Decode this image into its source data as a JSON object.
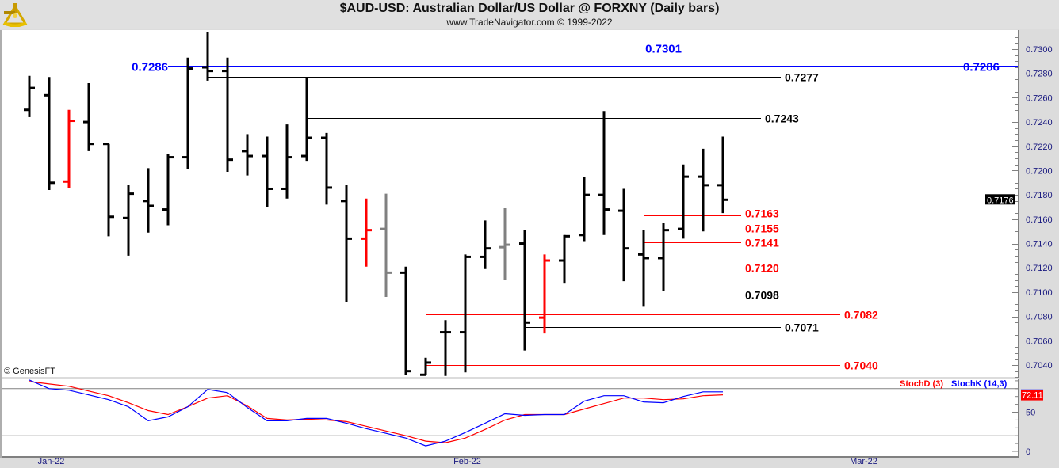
{
  "header": {
    "title": "$AUD-USD:  Australian Dollar/US Dollar @ FORXNY  (Daily bars)",
    "subtitle": "www.TradeNavigator.com © 1999-2022",
    "logo": "sextant-logo"
  },
  "watermark": "© GenesisFT",
  "colors": {
    "up": "#000000",
    "red_bar": "#ff0000",
    "gray_bar": "#808080",
    "blue_level": "#0000ff",
    "red_level": "#ff0000",
    "stoch_k": "#0000ff",
    "stoch_d": "#ff0000"
  },
  "chart_data": [
    {
      "type": "ohlc",
      "title": "$AUD-USD:  Australian Dollar/US Dollar @ FORXNY  (Daily bars)",
      "ylim": [
        0.703,
        0.7315
      ],
      "yticks": [
        "0.7040",
        "0.7060",
        "0.7080",
        "0.7100",
        "0.7120",
        "0.7140",
        "0.7160",
        "0.7180",
        "0.7200",
        "0.7220",
        "0.7240",
        "0.7260",
        "0.7280",
        "0.7300"
      ],
      "xticks": [
        {
          "label": "Jan-22",
          "bar": 1.1
        },
        {
          "label": "Feb-22",
          "bar": 22.1
        },
        {
          "label": "Mar-22",
          "bar": 42.1
        }
      ],
      "last_price": "0.7176",
      "bars": [
        {
          "o": 0.725,
          "h": 0.7278,
          "l": 0.7244,
          "c": 0.7268,
          "color": "black"
        },
        {
          "o": 0.7262,
          "h": 0.7277,
          "l": 0.7184,
          "c": 0.719,
          "color": "black"
        },
        {
          "o": 0.7191,
          "h": 0.725,
          "l": 0.7186,
          "c": 0.7241,
          "color": "red"
        },
        {
          "o": 0.724,
          "h": 0.7272,
          "l": 0.7216,
          "c": 0.7222,
          "color": "black"
        },
        {
          "o": 0.7222,
          "h": 0.7222,
          "l": 0.7146,
          "c": 0.7162,
          "color": "black"
        },
        {
          "o": 0.7161,
          "h": 0.7188,
          "l": 0.713,
          "c": 0.7181,
          "color": "black"
        },
        {
          "o": 0.7175,
          "h": 0.7202,
          "l": 0.7149,
          "c": 0.7171,
          "color": "black"
        },
        {
          "o": 0.7168,
          "h": 0.7214,
          "l": 0.7155,
          "c": 0.7211,
          "color": "black"
        },
        {
          "o": 0.7211,
          "h": 0.7293,
          "l": 0.7201,
          "c": 0.7284,
          "color": "black"
        },
        {
          "o": 0.7285,
          "h": 0.7314,
          "l": 0.7274,
          "c": 0.7282,
          "color": "black"
        },
        {
          "o": 0.7282,
          "h": 0.7293,
          "l": 0.7199,
          "c": 0.7209,
          "color": "black"
        },
        {
          "o": 0.7216,
          "h": 0.723,
          "l": 0.7196,
          "c": 0.7212,
          "color": "black"
        },
        {
          "o": 0.7212,
          "h": 0.7228,
          "l": 0.717,
          "c": 0.7185,
          "color": "black"
        },
        {
          "o": 0.7185,
          "h": 0.7238,
          "l": 0.7177,
          "c": 0.7211,
          "color": "black"
        },
        {
          "o": 0.7212,
          "h": 0.7277,
          "l": 0.7208,
          "c": 0.7227,
          "color": "black"
        },
        {
          "o": 0.7227,
          "h": 0.7231,
          "l": 0.7172,
          "c": 0.7186,
          "color": "black"
        },
        {
          "o": 0.7175,
          "h": 0.7188,
          "l": 0.7092,
          "c": 0.7144,
          "color": "black"
        },
        {
          "o": 0.7144,
          "h": 0.7177,
          "l": 0.7121,
          "c": 0.7151,
          "color": "red"
        },
        {
          "o": 0.7152,
          "h": 0.7181,
          "l": 0.7096,
          "c": 0.7116,
          "color": "gray"
        },
        {
          "o": 0.7116,
          "h": 0.7121,
          "l": 0.7032,
          "c": 0.7035,
          "color": "black"
        },
        {
          "o": 0.7032,
          "h": 0.7046,
          "l": 0.7032,
          "c": 0.7042,
          "color": "black"
        },
        {
          "o": 0.7067,
          "h": 0.7077,
          "l": 0.7031,
          "c": 0.7067,
          "color": "black"
        },
        {
          "o": 0.7067,
          "h": 0.7131,
          "l": 0.7034,
          "c": 0.7129,
          "color": "black"
        },
        {
          "o": 0.7129,
          "h": 0.7159,
          "l": 0.7119,
          "c": 0.7136,
          "color": "black"
        },
        {
          "o": 0.7137,
          "h": 0.7169,
          "l": 0.711,
          "c": 0.7139,
          "color": "gray"
        },
        {
          "o": 0.714,
          "h": 0.7151,
          "l": 0.7052,
          "c": 0.7075,
          "color": "black"
        },
        {
          "o": 0.7079,
          "h": 0.7131,
          "l": 0.7066,
          "c": 0.7126,
          "color": "red"
        },
        {
          "o": 0.7126,
          "h": 0.7147,
          "l": 0.7107,
          "c": 0.7146,
          "color": "black"
        },
        {
          "o": 0.7147,
          "h": 0.7195,
          "l": 0.7142,
          "c": 0.718,
          "color": "black"
        },
        {
          "o": 0.718,
          "h": 0.7249,
          "l": 0.7147,
          "c": 0.7168,
          "color": "black"
        },
        {
          "o": 0.7167,
          "h": 0.7185,
          "l": 0.7109,
          "c": 0.7136,
          "color": "black"
        },
        {
          "o": 0.7131,
          "h": 0.7151,
          "l": 0.7088,
          "c": 0.7128,
          "color": "black"
        },
        {
          "o": 0.7128,
          "h": 0.7157,
          "l": 0.7101,
          "c": 0.7151,
          "color": "black"
        },
        {
          "o": 0.7152,
          "h": 0.7205,
          "l": 0.7144,
          "c": 0.7195,
          "color": "black"
        },
        {
          "o": 0.7195,
          "h": 0.7218,
          "l": 0.715,
          "c": 0.7188,
          "color": "black"
        },
        {
          "o": 0.7188,
          "h": 0.7228,
          "l": 0.7165,
          "c": 0.7176,
          "color": "black"
        }
      ],
      "levels": [
        {
          "label": "0.7301",
          "value": 0.7301,
          "from_bar": 33,
          "line_color": "black",
          "label_color": "blue"
        },
        {
          "label": "0.7286",
          "value": 0.7286,
          "from_bar": -2,
          "line_color": "blue",
          "label_color": "blue",
          "both_ends": true
        },
        {
          "label": "0.7277",
          "value": 0.7277,
          "from_bar": 9,
          "line_color": "black",
          "label_color": "black"
        },
        {
          "label": "0.7243",
          "value": 0.7243,
          "from_bar": 14,
          "line_color": "black",
          "label_color": "black"
        },
        {
          "label": "0.7163",
          "value": 0.7163,
          "from_bar": 31,
          "line_color": "red",
          "label_color": "red"
        },
        {
          "label": "0.7155",
          "value": 0.7155,
          "from_bar": 31,
          "line_color": "red",
          "label_color": "red"
        },
        {
          "label": "0.7141",
          "value": 0.7141,
          "from_bar": 31,
          "line_color": "red",
          "label_color": "red"
        },
        {
          "label": "0.7120",
          "value": 0.712,
          "from_bar": 31,
          "line_color": "red",
          "label_color": "red"
        },
        {
          "label": "0.7098",
          "value": 0.7098,
          "from_bar": 31,
          "line_color": "black",
          "label_color": "black"
        },
        {
          "label": "0.7082",
          "value": 0.7082,
          "from_bar": 20,
          "line_color": "red",
          "label_color": "red"
        },
        {
          "label": "0.7071",
          "value": 0.7071,
          "from_bar": 25,
          "line_color": "black",
          "label_color": "black"
        },
        {
          "label": "0.7040",
          "value": 0.704,
          "from_bar": 20,
          "line_color": "red",
          "label_color": "red"
        }
      ]
    },
    {
      "type": "line",
      "ylim": [
        0,
        100
      ],
      "yticks": [
        "0",
        "50"
      ],
      "reference_lines": [
        20,
        80
      ],
      "last_value": "72.11",
      "series": [
        {
          "name": "StochD (3)",
          "color": "red",
          "values": [
            89,
            86,
            83,
            77,
            71,
            62,
            52,
            47,
            57,
            68,
            71,
            58,
            42,
            40,
            41,
            40,
            38,
            32,
            26,
            20,
            13,
            11,
            17,
            28,
            40,
            47,
            47,
            47,
            54,
            61,
            68,
            68,
            66,
            67,
            71,
            72.11
          ]
        },
        {
          "name": "StochK (14,3)",
          "color": "blue",
          "values": [
            91,
            80,
            78,
            72,
            66,
            57,
            39,
            44,
            57,
            79,
            75,
            56,
            39,
            39,
            42,
            42,
            36,
            29,
            23,
            17,
            7,
            13,
            24,
            36,
            48,
            46,
            47,
            47,
            64,
            71,
            71,
            63,
            62,
            70,
            76,
            76
          ]
        }
      ]
    }
  ]
}
